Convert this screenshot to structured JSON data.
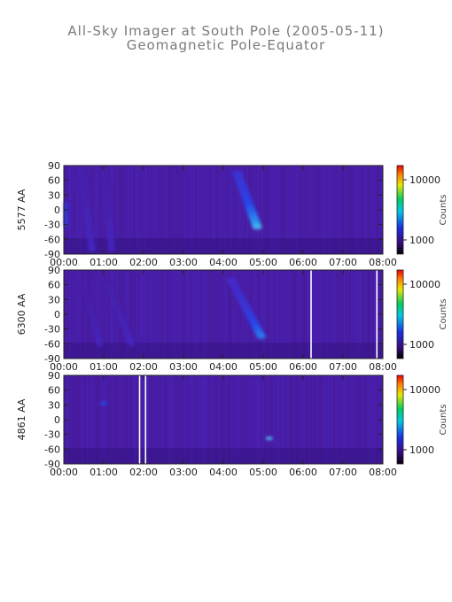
{
  "header": {
    "title": "All-Sky Imager at South Pole (2005-05-11)",
    "subtitle": "Geomagnetic Pole-Equator"
  },
  "chart_data": [
    {
      "type": "heatmap",
      "ylabel": "5577 AA",
      "x_ticks": [
        "00:00",
        "01:00",
        "02:00",
        "03:00",
        "04:00",
        "05:00",
        "06:00",
        "07:00",
        "08:00"
      ],
      "xlim_hours": [
        0,
        8
      ],
      "y_ticks": [
        90,
        60,
        30,
        0,
        -30,
        -60,
        -90
      ],
      "ylim": [
        -90,
        90
      ],
      "colorbar": {
        "label": "Counts",
        "ticks": [
          10000,
          1000
        ],
        "scale": "log"
      },
      "gaps_hours": [],
      "features": [
        {
          "kind": "streak",
          "t_start": 4.35,
          "t_end": 4.85,
          "lat_start": 75,
          "lat_end": -35,
          "intensity": 0.9
        },
        {
          "kind": "streak",
          "t_start": 0.45,
          "t_end": 0.7,
          "lat_start": 80,
          "lat_end": -80,
          "intensity": 0.35
        },
        {
          "kind": "streak",
          "t_start": 1.0,
          "t_end": 1.2,
          "lat_start": 80,
          "lat_end": -80,
          "intensity": 0.3
        },
        {
          "kind": "band",
          "t_start": 0.0,
          "t_end": 0.1,
          "lat_center": -10,
          "intensity": 0.55
        }
      ]
    },
    {
      "type": "heatmap",
      "ylabel": "6300 AA",
      "x_ticks": [
        "00:00",
        "01:00",
        "02:00",
        "03:00",
        "04:00",
        "05:00",
        "06:00",
        "07:00",
        "08:00"
      ],
      "xlim_hours": [
        0,
        8
      ],
      "y_ticks": [
        90,
        60,
        30,
        0,
        -30,
        -60,
        -90
      ],
      "ylim": [
        -90,
        90
      ],
      "colorbar": {
        "label": "Counts",
        "ticks": [
          10000,
          1000
        ],
        "scale": "log"
      },
      "gaps_hours": [
        6.2,
        7.85
      ],
      "features": [
        {
          "kind": "streak",
          "t_start": 4.2,
          "t_end": 4.95,
          "lat_start": 70,
          "lat_end": -45,
          "intensity": 0.75
        },
        {
          "kind": "streak",
          "t_start": 1.1,
          "t_end": 1.7,
          "lat_start": 60,
          "lat_end": -60,
          "intensity": 0.3
        },
        {
          "kind": "streak",
          "t_start": 0.5,
          "t_end": 0.9,
          "lat_start": 60,
          "lat_end": -60,
          "intensity": 0.25
        }
      ]
    },
    {
      "type": "heatmap",
      "ylabel": "4861 AA",
      "x_ticks": [
        "00:00",
        "01:00",
        "02:00",
        "03:00",
        "04:00",
        "05:00",
        "06:00",
        "07:00",
        "08:00"
      ],
      "xlim_hours": [
        0,
        8
      ],
      "y_ticks": [
        90,
        60,
        30,
        0,
        -30,
        -60,
        -90
      ],
      "ylim": [
        -90,
        90
      ],
      "colorbar": {
        "label": "Counts",
        "ticks": [
          10000,
          1000
        ],
        "scale": "log"
      },
      "gaps_hours": [
        1.9,
        2.05
      ],
      "features": [
        {
          "kind": "spot",
          "t": 5.15,
          "lat": -38,
          "intensity": 0.6
        },
        {
          "kind": "spot",
          "t": 1.0,
          "lat": 33,
          "intensity": 0.3
        }
      ]
    }
  ],
  "colors": {
    "background": "#ffffff",
    "panel_base": "#4a1a9c",
    "gap_line": "#ffffff",
    "axis": "#222222",
    "title": "#7a7a7a"
  }
}
